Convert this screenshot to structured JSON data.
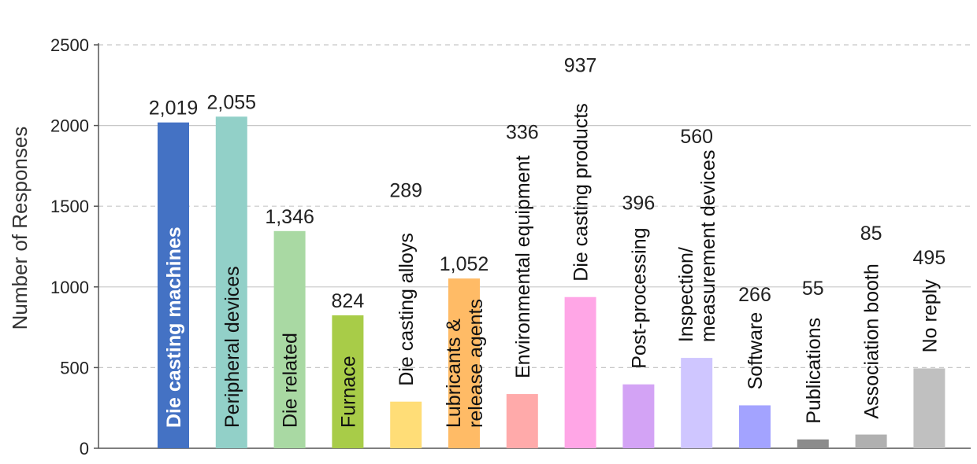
{
  "chart_data": {
    "type": "bar",
    "title": "",
    "xlabel": "",
    "ylabel": "Number of Responses",
    "ylim": [
      0,
      2500
    ],
    "yticks": [
      0,
      500,
      1000,
      1500,
      2000,
      2500
    ],
    "grid": "horizontal dashed",
    "categories": [
      "Die casting machines",
      "Peripheral devices",
      "Die related",
      "Furnace",
      "Die casting alloys",
      "Lubricants & release agents",
      "Environmental equipment",
      "Die casting products",
      "Post-processing",
      "Inspection/ measurement devices",
      "Software",
      "Publications",
      "Association booth",
      "No reply"
    ],
    "category_lines": [
      [
        "Die casting machines"
      ],
      [
        "Peripheral devices"
      ],
      [
        "Die related"
      ],
      [
        "Furnace"
      ],
      [
        "Die casting alloys"
      ],
      [
        "Lubricants &",
        "release agents"
      ],
      [
        "Environmental equipment"
      ],
      [
        "Die casting products"
      ],
      [
        "Post-processing"
      ],
      [
        "Inspection/",
        "measurement devices"
      ],
      [
        "Software"
      ],
      [
        "Publications"
      ],
      [
        "Association booth"
      ],
      [
        "No reply"
      ]
    ],
    "values": [
      2019,
      2055,
      1346,
      824,
      289,
      1052,
      336,
      937,
      396,
      560,
      266,
      55,
      85,
      495
    ],
    "value_labels": [
      "2,019",
      "2,055",
      "1,346",
      "824",
      "289",
      "1,052",
      "336",
      "937",
      "396",
      "560",
      "266",
      "55",
      "85",
      "495"
    ],
    "colors": [
      "#4472c4",
      "#92d0c8",
      "#a9d9a3",
      "#a8cc48",
      "#ffdd77",
      "#ffbb66",
      "#ffaaaa",
      "#ffa6e6",
      "#d3a3f5",
      "#cfc6ff",
      "#a3a3ff",
      "#8c8c8c",
      "#b0b0b0",
      "#c0c0c0"
    ]
  }
}
